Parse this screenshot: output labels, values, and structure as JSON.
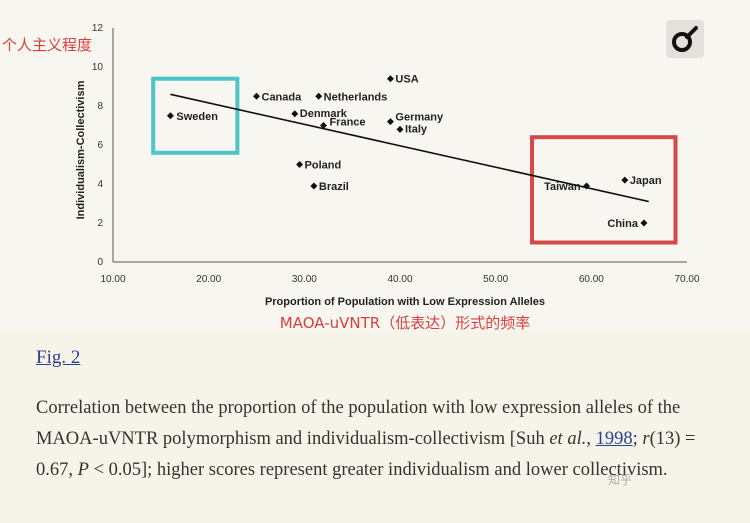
{
  "annotations": {
    "y_cn": "个人主义程度",
    "x_cn": "MAOA-uVNTR（低表达）形式的频率",
    "highlight_left_color": "#4cc5c6",
    "highlight_right_color": "#d54a48"
  },
  "figure": {
    "label": "Fig. 2",
    "caption": {
      "part1": "Correlation between the proportion of the population with low expression alleles of the MAOA-uVNTR polymorphism and individualism-collectivism [Suh ",
      "etal": "et al.",
      "comma": ", ",
      "year": "1998",
      "semi": "; ",
      "r": "r",
      "part2": "(13) = 0.67, ",
      "p": "P",
      "part3": " < 0.05]; higher scores represent greater individualism and lower collectivism."
    }
  },
  "watermark": "知乎",
  "chart_data": {
    "type": "scatter",
    "xlabel": "Proportion of Population with Low Expression Alleles",
    "ylabel": "Individualism-Collectivism",
    "xlim": [
      10,
      70
    ],
    "ylim": [
      0,
      12
    ],
    "xticks": [
      "10.00",
      "20.00",
      "30.00",
      "40.00",
      "50.00",
      "60.00",
      "70.00"
    ],
    "yticks": [
      "0",
      "2",
      "4",
      "6",
      "8",
      "10",
      "12"
    ],
    "grid": false,
    "points": [
      {
        "name": "Sweden",
        "x": 16.0,
        "y": 7.5
      },
      {
        "name": "Canada",
        "x": 25.0,
        "y": 8.5
      },
      {
        "name": "Netherlands",
        "x": 31.5,
        "y": 8.5
      },
      {
        "name": "USA",
        "x": 39.0,
        "y": 9.4
      },
      {
        "name": "Denmark",
        "x": 29.0,
        "y": 7.6
      },
      {
        "name": "France",
        "x": 32.0,
        "y": 7.0
      },
      {
        "name": "Germany",
        "x": 39.0,
        "y": 7.2
      },
      {
        "name": "Italy",
        "x": 40.0,
        "y": 6.8
      },
      {
        "name": "Poland",
        "x": 29.5,
        "y": 5.0
      },
      {
        "name": "Brazil",
        "x": 31.0,
        "y": 3.9
      },
      {
        "name": "Japan",
        "x": 63.5,
        "y": 4.2
      },
      {
        "name": "Taiwan",
        "x": 59.5,
        "y": 3.9
      },
      {
        "name": "China",
        "x": 65.5,
        "y": 2.0
      }
    ],
    "trendline": {
      "x": [
        16,
        66
      ],
      "y": [
        8.6,
        3.1
      ]
    }
  }
}
